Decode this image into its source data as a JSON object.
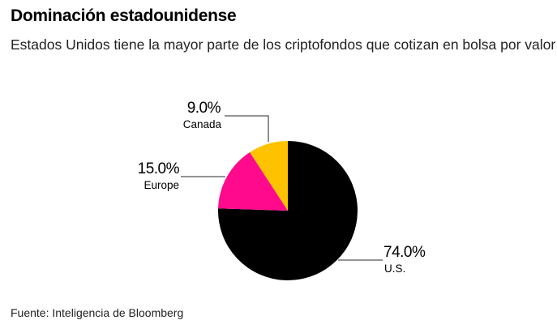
{
  "title": "Dominación estadounidense",
  "subtitle": "Estados Unidos tiene la mayor parte de los criptofondos que cotizan en bolsa por valor",
  "source": "Fuente: Inteligencia de Bloomberg",
  "chart_data": {
    "type": "pie",
    "slices": [
      {
        "label": "U.S.",
        "value": 74.0,
        "display": "74.0%",
        "color": "#000000"
      },
      {
        "label": "Europe",
        "value": 15.0,
        "display": "15.0%",
        "color": "#ff0a8c"
      },
      {
        "label": "Canada",
        "value": 9.0,
        "display": "9.0%",
        "color": "#ffc200"
      }
    ],
    "start": "top, clockwise"
  }
}
